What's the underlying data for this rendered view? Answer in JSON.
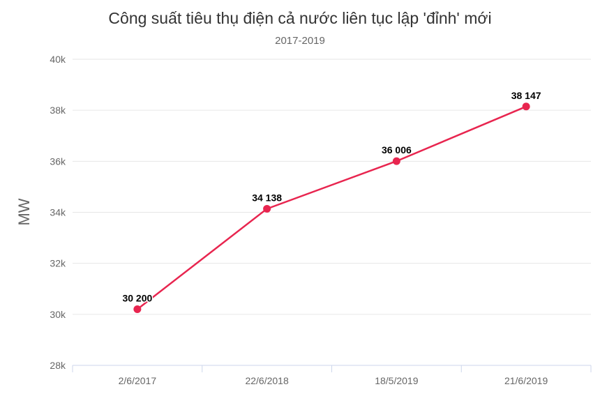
{
  "chart_data": {
    "type": "line",
    "title": "Công suất tiêu thụ điện cả nước liên tục lập 'đỉnh' mới",
    "subtitle": "2017-2019",
    "ylabel": "MW",
    "xlabel": "",
    "categories": [
      "2/6/2017",
      "22/6/2018",
      "18/5/2019",
      "21/6/2019"
    ],
    "series": [
      {
        "values": [
          30200,
          34138,
          36006,
          38147
        ],
        "data_labels": [
          "30 200",
          "34 138",
          "36 006",
          "38 147"
        ],
        "color": "#e8254f"
      }
    ],
    "ylim": [
      28000,
      40000
    ],
    "yticks": [
      28000,
      30000,
      32000,
      34000,
      36000,
      38000,
      40000
    ],
    "ytick_labels": [
      "28k",
      "30k",
      "32k",
      "34k",
      "36k",
      "38k",
      "40k"
    ],
    "grid": true,
    "legend": "none"
  },
  "colors": {
    "line": "#e8254f",
    "grid": "#e6e6e6",
    "axis": "#ccd6eb",
    "text": "#333333",
    "tick_text": "#666666"
  }
}
